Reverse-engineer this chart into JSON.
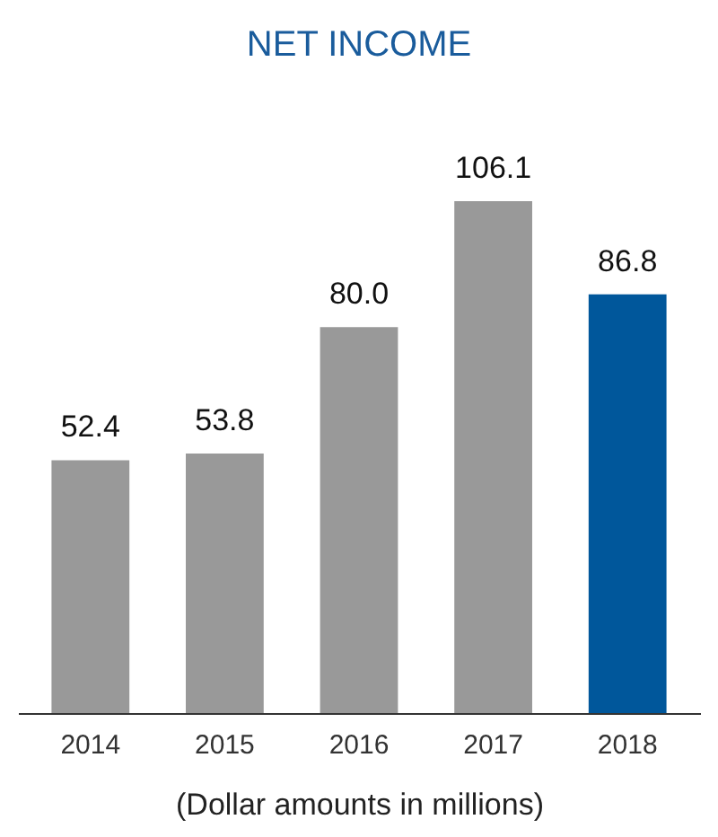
{
  "chart_data": {
    "type": "bar",
    "title": "NET INCOME",
    "categories": [
      "2014",
      "2015",
      "2016",
      "2017",
      "2018"
    ],
    "values": [
      52.4,
      53.8,
      80.0,
      106.1,
      86.8
    ],
    "colors": [
      "#999999",
      "#999999",
      "#999999",
      "#999999",
      "#00579b"
    ],
    "value_labels": [
      "52.4",
      "53.8",
      "80.0",
      "106.1",
      "86.8"
    ],
    "annotations": [
      "(Dollar amounts in millions)"
    ]
  }
}
